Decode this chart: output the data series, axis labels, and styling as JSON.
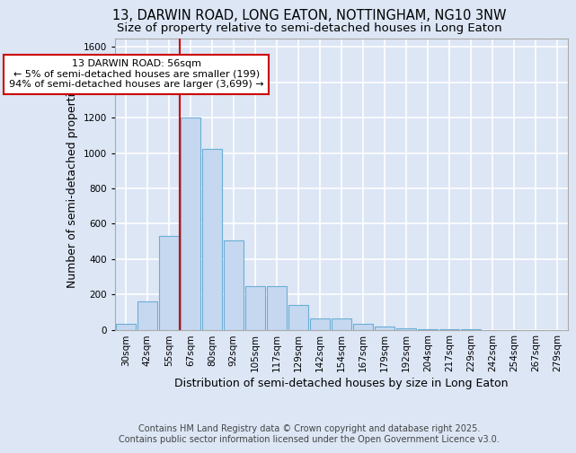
{
  "title1": "13, DARWIN ROAD, LONG EATON, NOTTINGHAM, NG10 3NW",
  "title2": "Size of property relative to semi-detached houses in Long Eaton",
  "xlabel": "Distribution of semi-detached houses by size in Long Eaton",
  "ylabel": "Number of semi-detached properties",
  "footnote1": "Contains HM Land Registry data © Crown copyright and database right 2025.",
  "footnote2": "Contains public sector information licensed under the Open Government Licence v3.0.",
  "bar_labels": [
    "30sqm",
    "42sqm",
    "55sqm",
    "67sqm",
    "80sqm",
    "92sqm",
    "105sqm",
    "117sqm",
    "129sqm",
    "142sqm",
    "154sqm",
    "167sqm",
    "179sqm",
    "192sqm",
    "204sqm",
    "217sqm",
    "229sqm",
    "242sqm",
    "254sqm",
    "267sqm",
    "279sqm"
  ],
  "bar_values": [
    35,
    160,
    530,
    1200,
    1025,
    505,
    245,
    245,
    140,
    65,
    65,
    35,
    20,
    10,
    5,
    5,
    5,
    0,
    0,
    0,
    0
  ],
  "bar_color": "#c5d8f0",
  "bar_edge_color": "#6baed6",
  "annotation_title": "13 DARWIN ROAD: 56sqm",
  "annotation_line1": "← 5% of semi-detached houses are smaller (199)",
  "annotation_line2": "94% of semi-detached houses are larger (3,699) →",
  "annotation_box_facecolor": "#ffffff",
  "annotation_box_edgecolor": "#cc0000",
  "vline_color": "#cc0000",
  "vline_x": 2.5,
  "ylim": [
    0,
    1650
  ],
  "yticks": [
    0,
    200,
    400,
    600,
    800,
    1000,
    1200,
    1400,
    1600
  ],
  "background_color": "#dce6f5",
  "grid_color": "#ffffff",
  "title_fontsize": 10.5,
  "subtitle_fontsize": 9.5,
  "axis_label_fontsize": 9,
  "tick_fontsize": 7.5,
  "annotation_fontsize": 8,
  "footnote_fontsize": 7
}
